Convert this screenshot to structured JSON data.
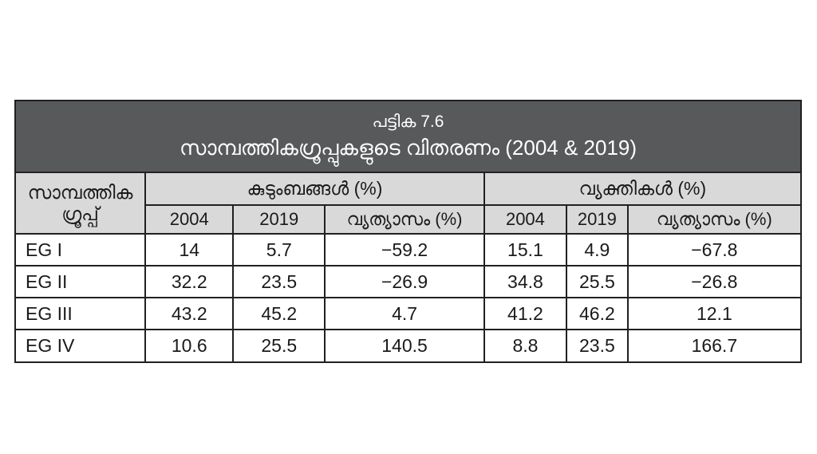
{
  "table": {
    "title": "പട്ടിക 7.6",
    "subtitle": "സാമ്പത്തികഗ്രൂപ്പുകളുടെ വിതരണം (2004 & 2019)",
    "row_header": {
      "line1": "സാമ്പത്തിക",
      "line2": "ഗ്രൂപ്പ്"
    },
    "group_headers": [
      "കുടുംബങ്ങൾ (%)",
      "വ്യക്തികൾ (%)"
    ],
    "sub_headers": [
      "2004",
      "2019",
      "വ്യത്യാസം (%)",
      "2004",
      "2019",
      "വ്യത്യാസം (%)"
    ],
    "rows": [
      {
        "label": "EG I",
        "values": [
          "14",
          "5.7",
          "−59.2",
          "15.1",
          "4.9",
          "−67.8"
        ]
      },
      {
        "label": "EG II",
        "values": [
          "32.2",
          "23.5",
          "−26.9",
          "34.8",
          "25.5",
          "−26.8"
        ]
      },
      {
        "label": "EG III",
        "values": [
          "43.2",
          "45.2",
          "4.7",
          "41.2",
          "46.2",
          "12.1"
        ]
      },
      {
        "label": "EG IV",
        "values": [
          "10.6",
          "25.5",
          "140.5",
          "8.8",
          "23.5",
          "166.7"
        ]
      }
    ]
  },
  "colors": {
    "title_bar_bg": "#58595b",
    "title_text": "#ffffff",
    "header_bg": "#d9d9d9",
    "border": "#231f20",
    "body_text": "#1a1a1a"
  },
  "chart_data": {
    "type": "table",
    "title": "പട്ടിക 7.6",
    "subtitle": "സാമ്പത്തികഗ്രൂപ്പുകളുടെ വിതരണം (2004 & 2019)",
    "row_header_label": "സാമ്പത്തിക ഗ്രൂപ്പ്",
    "column_groups": [
      {
        "label": "കുടുംബങ്ങൾ (%)",
        "columns": [
          "2004",
          "2019",
          "വ്യത്യാസം (%)"
        ]
      },
      {
        "label": "വ്യക്തികൾ (%)",
        "columns": [
          "2004",
          "2019",
          "വ്യത്യാസം (%)"
        ]
      }
    ],
    "rows": [
      {
        "label": "EG I",
        "families": {
          "y2004": 14,
          "y2019": 5.7,
          "change_pct": -59.2
        },
        "persons": {
          "y2004": 15.1,
          "y2019": 4.9,
          "change_pct": -67.8
        }
      },
      {
        "label": "EG II",
        "families": {
          "y2004": 32.2,
          "y2019": 23.5,
          "change_pct": -26.9
        },
        "persons": {
          "y2004": 34.8,
          "y2019": 25.5,
          "change_pct": -26.8
        }
      },
      {
        "label": "EG III",
        "families": {
          "y2004": 43.2,
          "y2019": 45.2,
          "change_pct": 4.7
        },
        "persons": {
          "y2004": 41.2,
          "y2019": 46.2,
          "change_pct": 12.1
        }
      },
      {
        "label": "EG IV",
        "families": {
          "y2004": 10.6,
          "y2019": 25.5,
          "change_pct": 140.5
        },
        "persons": {
          "y2004": 8.8,
          "y2019": 23.5,
          "change_pct": 166.7
        }
      }
    ]
  }
}
